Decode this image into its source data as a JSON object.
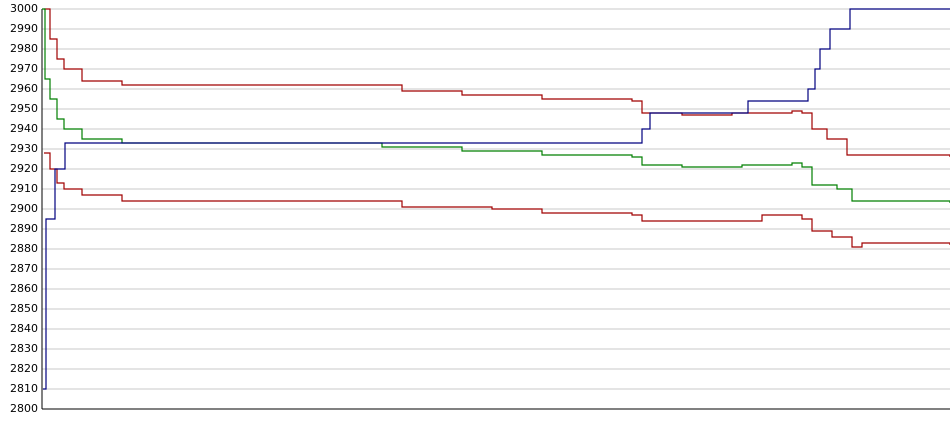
{
  "chart_data": {
    "type": "line",
    "step": true,
    "grid": true,
    "xlim": [
      0,
      908
    ],
    "ylim": [
      2800,
      3000
    ],
    "yticks": [
      2800,
      2810,
      2820,
      2830,
      2840,
      2850,
      2860,
      2870,
      2880,
      2890,
      2900,
      2910,
      2920,
      2930,
      2940,
      2950,
      2960,
      2970,
      2980,
      2990,
      3000
    ],
    "series": [
      {
        "color": "#a00000",
        "x": [
          2,
          8,
          15,
          22,
          40,
          80,
          300,
          360,
          420,
          500,
          590,
          600,
          640,
          690,
          750,
          760,
          770,
          785,
          805,
          908
        ],
        "values": [
          3000,
          2985,
          2975,
          2970,
          2964,
          2962,
          2962,
          2959,
          2957,
          2955,
          2954,
          2948,
          2947,
          2948,
          2949,
          2948,
          2940,
          2935,
          2927,
          2926
        ]
      },
      {
        "color": "#007f00",
        "x": [
          0,
          3,
          8,
          15,
          22,
          40,
          80,
          300,
          340,
          420,
          500,
          590,
          600,
          640,
          700,
          750,
          760,
          770,
          795,
          810,
          908
        ],
        "values": [
          3000,
          2965,
          2955,
          2945,
          2940,
          2935,
          2933,
          2933,
          2931,
          2929,
          2927,
          2926,
          2922,
          2921,
          2922,
          2923,
          2921,
          2912,
          2910,
          2904,
          2903
        ]
      },
      {
        "color": "#a00000",
        "x": [
          2,
          8,
          15,
          22,
          40,
          80,
          300,
          360,
          450,
          500,
          590,
          600,
          690,
          720,
          760,
          770,
          790,
          810,
          820,
          908
        ],
        "values": [
          2928,
          2920,
          2913,
          2910,
          2907,
          2904,
          2904,
          2901,
          2900,
          2898,
          2897,
          2894,
          2894,
          2897,
          2895,
          2889,
          2886,
          2881,
          2883,
          2882
        ]
      },
      {
        "color": "#00007f",
        "x": [
          1,
          4,
          13,
          23,
          593,
          600,
          608,
          706,
          766,
          773,
          778,
          788,
          808,
          820,
          908
        ],
        "values": [
          2810,
          2895,
          2920,
          2933,
          2933,
          2940,
          2948,
          2954,
          2960,
          2970,
          2980,
          2990,
          3000,
          3000,
          3000
        ]
      }
    ]
  }
}
